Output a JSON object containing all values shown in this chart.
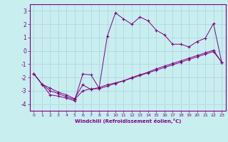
{
  "xlabel": "Windchill (Refroidissement éolien,°C)",
  "background_color": "#c8eef0",
  "grid_color": "#aad4dc",
  "line_color": "#800080",
  "xlim": [
    -0.5,
    23.5
  ],
  "ylim": [
    -4.5,
    3.5
  ],
  "yticks": [
    -4,
    -3,
    -2,
    -1,
    0,
    1,
    2,
    3
  ],
  "xticks": [
    0,
    1,
    2,
    3,
    4,
    5,
    6,
    7,
    8,
    9,
    10,
    11,
    12,
    13,
    14,
    15,
    16,
    17,
    18,
    19,
    20,
    21,
    22,
    23
  ],
  "series1_x": [
    0,
    1,
    2,
    3,
    4,
    5,
    6,
    7,
    8,
    9,
    10,
    11,
    12,
    13,
    14,
    15,
    16,
    17,
    18,
    19,
    20,
    21,
    22,
    23
  ],
  "series1_y": [
    -1.7,
    -2.5,
    -3.3,
    -3.4,
    -3.55,
    -3.75,
    -1.75,
    -1.8,
    -2.8,
    1.1,
    2.85,
    2.4,
    2.0,
    2.55,
    2.25,
    1.55,
    1.2,
    0.5,
    0.5,
    0.3,
    0.7,
    0.95,
    2.05,
    -0.85
  ],
  "series2_x": [
    0,
    1,
    2,
    3,
    4,
    5,
    6,
    7,
    8,
    9,
    10,
    11,
    12,
    13,
    14,
    15,
    16,
    17,
    18,
    19,
    20,
    21,
    22,
    23
  ],
  "series2_y": [
    -1.7,
    -2.5,
    -2.8,
    -3.1,
    -3.3,
    -3.6,
    -2.55,
    -2.9,
    -2.75,
    -2.55,
    -2.4,
    -2.25,
    -2.05,
    -1.85,
    -1.65,
    -1.45,
    -1.25,
    -1.05,
    -0.85,
    -0.65,
    -0.45,
    -0.25,
    -0.05,
    -0.85
  ],
  "series3_x": [
    0,
    1,
    2,
    3,
    4,
    5,
    6,
    7,
    8,
    9,
    10,
    11,
    12,
    13,
    14,
    15,
    16,
    17,
    18,
    19,
    20,
    21,
    22,
    23
  ],
  "series3_y": [
    -1.7,
    -2.5,
    -3.0,
    -3.2,
    -3.45,
    -3.65,
    -3.0,
    -2.85,
    -2.85,
    -2.65,
    -2.45,
    -2.25,
    -2.0,
    -1.8,
    -1.6,
    -1.35,
    -1.15,
    -0.95,
    -0.75,
    -0.55,
    -0.35,
    -0.15,
    0.05,
    -0.85
  ]
}
